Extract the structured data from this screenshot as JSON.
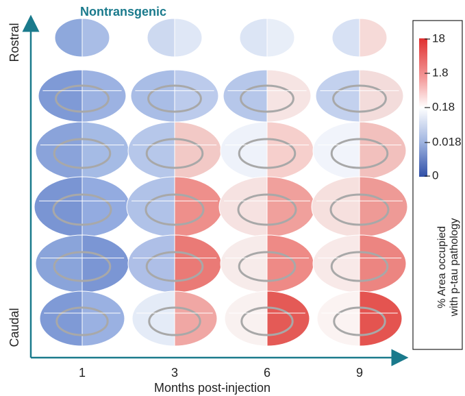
{
  "title": "Nontransgenic",
  "y_axis": {
    "top": "Rostral",
    "bottom": "Caudal"
  },
  "x_axis": {
    "label": "Months post-injection",
    "ticks": [
      "1",
      "3",
      "6",
      "9"
    ]
  },
  "colorbar": {
    "ticks": [
      "18",
      "1.8",
      "0.18",
      "0.018",
      "0"
    ],
    "label": [
      "% Area occupied",
      "with p-tau pathology"
    ]
  }
}
